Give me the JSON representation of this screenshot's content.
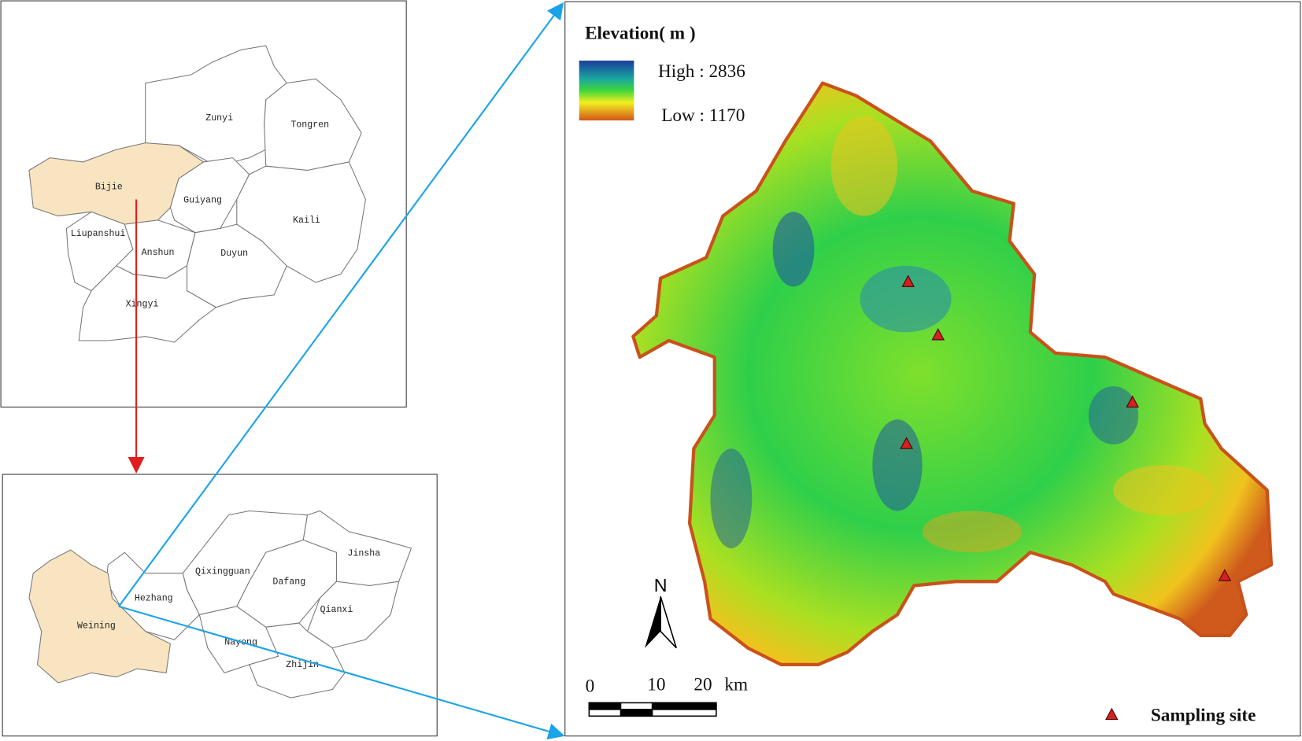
{
  "overview_map": {
    "regions": [
      "Zunyi",
      "Tongren",
      "Bijie",
      "Guiyang",
      "Kaili",
      "Liupanshui",
      "Anshun",
      "Duyun",
      "Xingyi"
    ]
  },
  "county_map": {
    "regions": [
      "Qixingguan",
      "Dafang",
      "Jinsha",
      "Hezhang",
      "Qianxi",
      "Weining",
      "Nayong",
      "Zhijin"
    ]
  },
  "elevation_map": {
    "legend_title": "Elevation( m )",
    "high_label": "High : 2836",
    "low_label": "Low : 1170",
    "north_label": "N",
    "scale_labels": [
      "0",
      "10",
      "20",
      "km"
    ],
    "sampling_legend": "Sampling site"
  }
}
